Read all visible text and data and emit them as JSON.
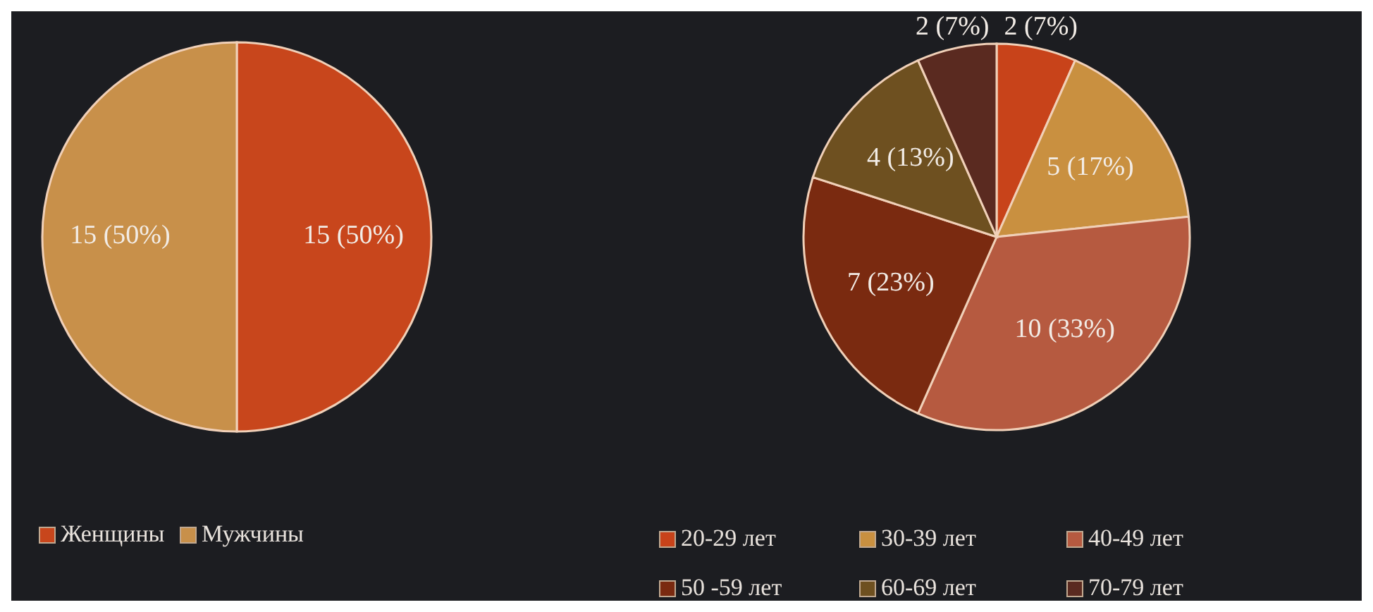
{
  "chart_data": [
    {
      "type": "pie",
      "categories": [
        "Женщины",
        "Мужчины"
      ],
      "values": [
        15,
        15
      ],
      "colors": [
        "#c8461c",
        "#c8904a"
      ],
      "value_labels": [
        "15 (50%)",
        "15 (50%)"
      ],
      "legend": "bottom left"
    },
    {
      "type": "pie",
      "categories": [
        "20-29 лет",
        "30-39 лет",
        "40-49 лет",
        "50 -59 лет",
        "60-69 лет",
        "70-79 лет"
      ],
      "values": [
        2,
        5,
        10,
        7,
        4,
        2
      ],
      "colors": [
        "#c8431a",
        "#c99040",
        "#b65a40",
        "#7a2a10",
        "#6e5020",
        "#5a2a20"
      ],
      "value_labels": [
        "2 (7%)",
        "5 (17%)",
        "10 (33%)",
        "7 (23%)",
        "4 (13%)",
        "2 (7%)"
      ],
      "legend": "bottom"
    }
  ]
}
